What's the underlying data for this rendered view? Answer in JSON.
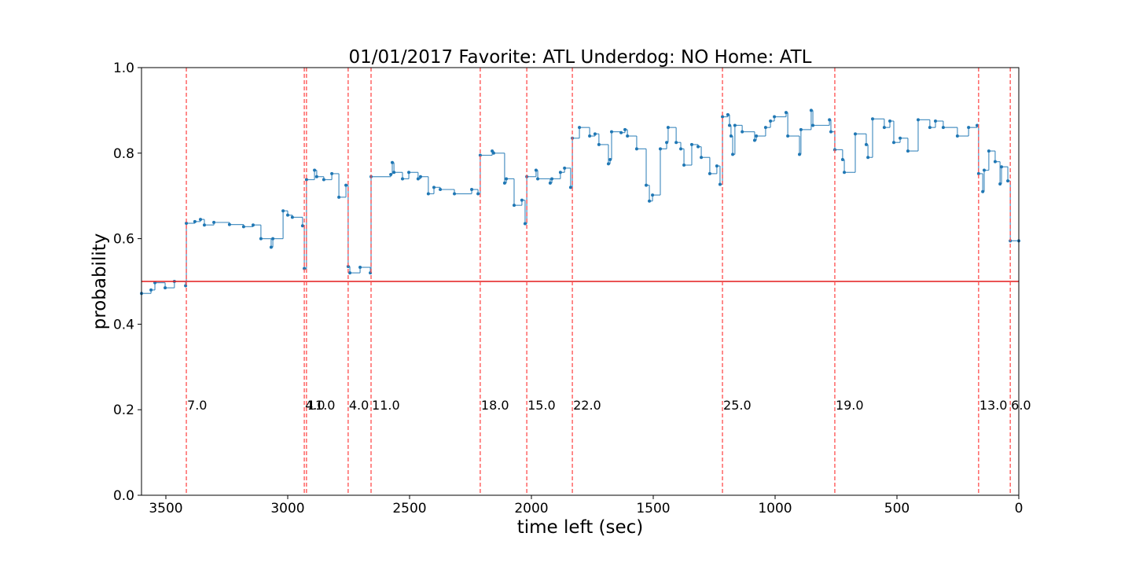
{
  "chart_data": {
    "type": "step",
    "title": "01/01/2017 Favorite: ATL Underdog: NO Home: ATL",
    "xlabel": "time left (sec)",
    "ylabel": "probability",
    "x": [
      3600,
      3561,
      3545,
      3503,
      3465,
      3419,
      3416,
      3381,
      3358,
      3342,
      3303,
      3239,
      3181,
      3142,
      3110,
      3068,
      3061,
      3019,
      3000,
      2981,
      2939,
      2932,
      2923,
      2890,
      2881,
      2852,
      2819,
      2790,
      2761,
      2752,
      2745,
      2703,
      2661,
      2658,
      2577,
      2571,
      2564,
      2529,
      2503,
      2465,
      2455,
      2423,
      2400,
      2374,
      2316,
      2245,
      2219,
      2210,
      2161,
      2155,
      2110,
      2103,
      2071,
      2039,
      2026,
      2019,
      1981,
      1974,
      1923,
      1916,
      1881,
      1864,
      1839,
      1832,
      1803,
      1761,
      1739,
      1723,
      1684,
      1677,
      1671,
      1632,
      1616,
      1606,
      1568,
      1529,
      1516,
      1503,
      1471,
      1445,
      1439,
      1406,
      1387,
      1374,
      1342,
      1316,
      1303,
      1268,
      1239,
      1226,
      1216,
      1194,
      1187,
      1181,
      1174,
      1165,
      1135,
      1084,
      1077,
      1039,
      1019,
      1003,
      955,
      948,
      900,
      894,
      852,
      845,
      777,
      771,
      755,
      723,
      716,
      671,
      626,
      619,
      600,
      552,
      529,
      513,
      487,
      455,
      413,
      365,
      342,
      310,
      252,
      206,
      171,
      165,
      148,
      142,
      123,
      97,
      77,
      71,
      45,
      35,
      0
    ],
    "series": [
      {
        "name": "probability",
        "color": "#1f77b4",
        "values": [
          0.472,
          0.48,
          0.497,
          0.485,
          0.5,
          0.49,
          0.636,
          0.64,
          0.645,
          0.632,
          0.638,
          0.633,
          0.628,
          0.632,
          0.6,
          0.58,
          0.6,
          0.665,
          0.655,
          0.65,
          0.63,
          0.53,
          0.738,
          0.76,
          0.745,
          0.738,
          0.752,
          0.697,
          0.725,
          0.535,
          0.52,
          0.533,
          0.52,
          0.745,
          0.75,
          0.778,
          0.755,
          0.74,
          0.755,
          0.74,
          0.745,
          0.705,
          0.72,
          0.715,
          0.705,
          0.715,
          0.705,
          0.795,
          0.805,
          0.8,
          0.73,
          0.74,
          0.678,
          0.69,
          0.635,
          0.745,
          0.76,
          0.74,
          0.73,
          0.74,
          0.755,
          0.765,
          0.72,
          0.835,
          0.86,
          0.84,
          0.845,
          0.82,
          0.775,
          0.785,
          0.85,
          0.848,
          0.855,
          0.84,
          0.81,
          0.725,
          0.688,
          0.702,
          0.81,
          0.825,
          0.86,
          0.825,
          0.81,
          0.772,
          0.82,
          0.815,
          0.79,
          0.752,
          0.77,
          0.727,
          0.885,
          0.89,
          0.865,
          0.84,
          0.797,
          0.865,
          0.85,
          0.83,
          0.84,
          0.86,
          0.875,
          0.885,
          0.895,
          0.84,
          0.797,
          0.855,
          0.9,
          0.865,
          0.878,
          0.85,
          0.808,
          0.785,
          0.755,
          0.845,
          0.82,
          0.79,
          0.88,
          0.86,
          0.875,
          0.825,
          0.835,
          0.805,
          0.878,
          0.86,
          0.875,
          0.86,
          0.84,
          0.86,
          0.865,
          0.752,
          0.71,
          0.76,
          0.805,
          0.78,
          0.728,
          0.768,
          0.735,
          0.595,
          0.595
        ]
      }
    ],
    "hline": {
      "value": 0.5,
      "color": "#e41a1c"
    },
    "events": [
      {
        "x": 3416,
        "label": "7.0"
      },
      {
        "x": 2932,
        "label": "4.0"
      },
      {
        "x": 2923,
        "label": "11.0"
      },
      {
        "x": 2752,
        "label": "4.0"
      },
      {
        "x": 2658,
        "label": "11.0"
      },
      {
        "x": 2210,
        "label": "18.0"
      },
      {
        "x": 2019,
        "label": "15.0"
      },
      {
        "x": 1832,
        "label": "22.0"
      },
      {
        "x": 1216,
        "label": "25.0"
      },
      {
        "x": 755,
        "label": "19.0"
      },
      {
        "x": 165,
        "label": "13.0"
      },
      {
        "x": 35,
        "label": "6.0"
      }
    ],
    "event_color": "#ff4d4d",
    "xlim": [
      3600,
      0
    ],
    "xticks": [
      3500,
      3000,
      2500,
      2000,
      1500,
      1000,
      500,
      0
    ],
    "ylim": [
      0,
      1
    ],
    "yticks": [
      {
        "value": 0,
        "label": "0.0"
      },
      {
        "value": 0.2,
        "label": "0.2"
      },
      {
        "value": 0.4,
        "label": "0.4"
      },
      {
        "value": 0.6,
        "label": "0.6"
      },
      {
        "value": 0.8,
        "label": "0.8"
      },
      {
        "value": 1,
        "label": "1.0"
      }
    ]
  }
}
